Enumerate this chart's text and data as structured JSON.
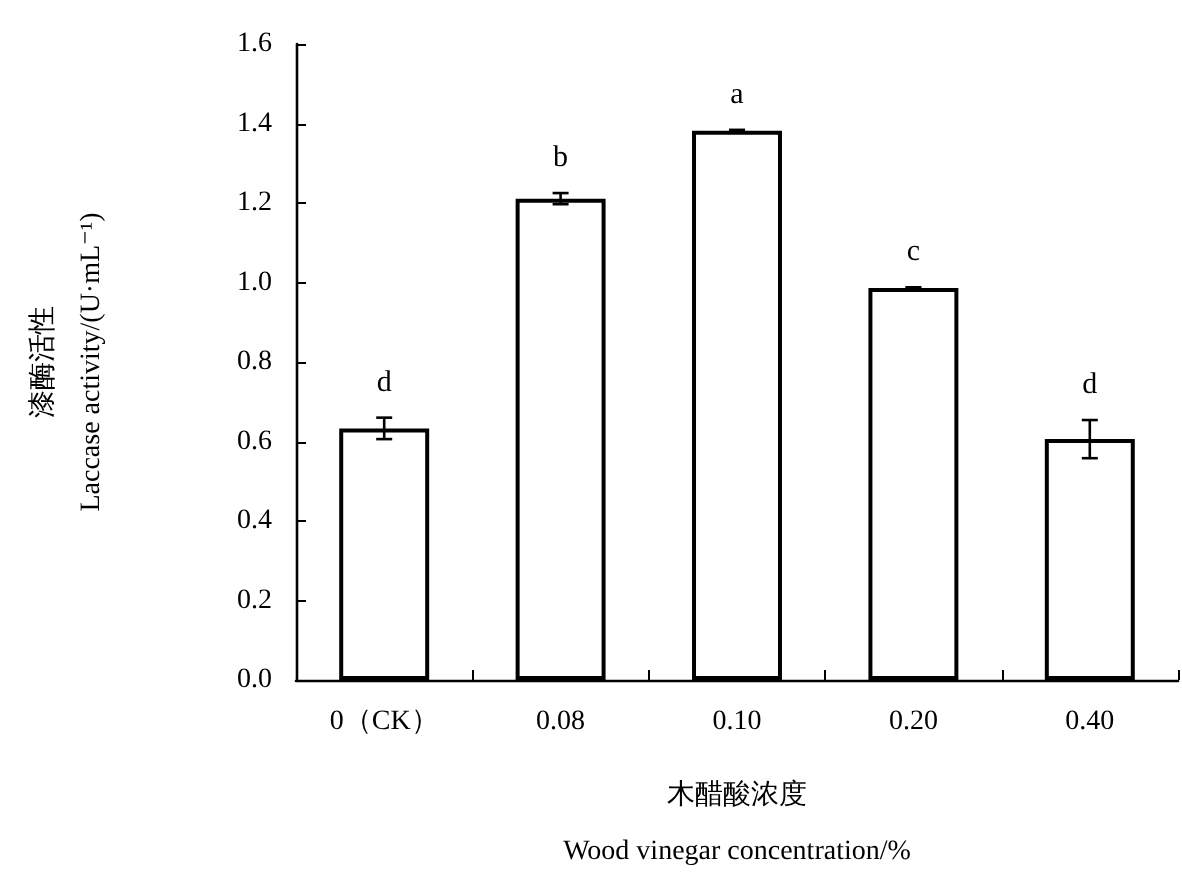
{
  "chart_data": {
    "type": "bar",
    "xlabel": "木醋酸浓度\nWood vinegar concentration/%",
    "ylabel": "漆酶活性\nLaccase activity/(U·mL⁻¹)",
    "categories": [
      "0（CK）",
      "0.08",
      "0.10",
      "0.20",
      "0.40"
    ],
    "values": [
      0.633,
      1.211,
      1.382,
      0.986,
      0.606
    ],
    "errors": [
      0.027,
      0.014,
      0.002,
      0.002,
      0.048
    ],
    "color": "#ffffff",
    "ylim": [
      0,
      1.6
    ],
    "yticks": [
      {
        "value": 0,
        "label": "0.0"
      },
      {
        "value": 0.2,
        "label": "0.2"
      },
      {
        "value": 0.4,
        "label": "0.4"
      },
      {
        "value": 0.6,
        "label": "0.6"
      },
      {
        "value": 0.8,
        "label": "0.8"
      },
      {
        "value": 1,
        "label": "1.0"
      },
      {
        "value": 1.2,
        "label": "1.2"
      },
      {
        "value": 1.4,
        "label": "1.4"
      },
      {
        "value": 1.6,
        "label": "1.6"
      }
    ],
    "annotations": [
      "d",
      "b",
      "a",
      "c",
      "d"
    ],
    "grid": false
  }
}
